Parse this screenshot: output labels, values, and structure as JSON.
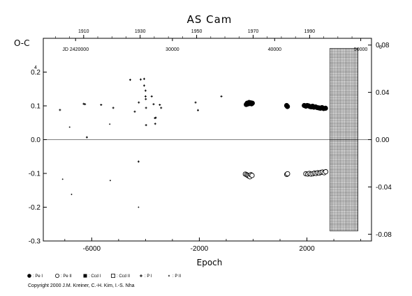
{
  "chart_data": {
    "type": "scatter",
    "title": "AS Cam",
    "xlabel": "Epoch",
    "ylabel": "O-C",
    "xlim": [
      -7800,
      4400
    ],
    "ylim": [
      -0.3,
      0.3
    ],
    "x_ticks": [
      -6000,
      -2000,
      2000
    ],
    "x_ticks_label_text": [
      "-6000",
      "-2000",
      "2000"
    ],
    "y_ticks_left": [
      -0.3,
      -0.2,
      -0.1,
      0.0,
      0.1,
      0.2
    ],
    "y_ticks_left_text": [
      "-0.3",
      "-0.2",
      "-0.1",
      "0.0",
      "0.1",
      "0.2"
    ],
    "y_right_ticks": [
      -0.08,
      -0.04,
      0.0,
      0.04,
      0.08
    ],
    "y_right_ticks_text": [
      "-0.08",
      "-0.04",
      "0.00",
      "0.04",
      "0.08"
    ],
    "top_year_axis": {
      "labels": [
        "1910",
        "1930",
        "1950",
        "1970",
        "1990"
      ],
      "epochs": [
        -6300,
        -4200,
        -2100,
        0,
        2100
      ]
    },
    "jd_axis": {
      "labels": [
        "JD 2420000",
        "30000",
        "40000",
        "50000"
      ],
      "epochs": [
        -6600,
        -3000,
        800,
        4000
      ]
    },
    "hatched_region": {
      "from_epoch": 2850,
      "to_epoch": 3900,
      "y_top": 0.27,
      "y_bottom": -0.27
    },
    "grid": false,
    "legend": [
      {
        "symbol": "filled-circle",
        "label": ": Pe I"
      },
      {
        "symbol": "open-circle",
        "label": ": Pe II"
      },
      {
        "symbol": "filled-square",
        "label": ": Ccd I"
      },
      {
        "symbol": "open-square",
        "label": ": Ccd II"
      },
      {
        "symbol": "plus",
        "label": ": P I"
      },
      {
        "symbol": "small-plus",
        "label": ": P II"
      }
    ],
    "series": [
      {
        "name": ": Pe I",
        "marker": "filled-circle",
        "points": [
          [
            -255,
            0.104
          ],
          [
            -220,
            0.108
          ],
          [
            -180,
            0.106
          ],
          [
            -150,
            0.11
          ],
          [
            -120,
            0.107
          ],
          [
            -90,
            0.109
          ],
          [
            -60,
            0.106
          ],
          [
            -30,
            0.108
          ],
          [
            1245,
            0.101
          ],
          [
            1275,
            0.098
          ],
          [
            1900,
            0.101
          ],
          [
            1960,
            0.099
          ],
          [
            2010,
            0.101
          ],
          [
            2060,
            0.1
          ],
          [
            2110,
            0.098
          ],
          [
            2160,
            0.097
          ],
          [
            2210,
            0.099
          ],
          [
            2260,
            0.096
          ],
          [
            2320,
            0.097
          ],
          [
            2380,
            0.095
          ],
          [
            2440,
            0.094
          ],
          [
            2500,
            0.093
          ],
          [
            2560,
            0.095
          ],
          [
            2620,
            0.092
          ],
          [
            2690,
            0.093
          ]
        ]
      },
      {
        "name": ": Pe II",
        "marker": "open-circle",
        "points": [
          [
            -290,
            -0.102
          ],
          [
            -240,
            -0.104
          ],
          [
            -200,
            -0.106
          ],
          [
            -160,
            -0.108
          ],
          [
            -120,
            -0.11
          ],
          [
            -80,
            -0.104
          ],
          [
            -40,
            -0.106
          ],
          [
            1250,
            -0.103
          ],
          [
            1280,
            -0.101
          ],
          [
            1960,
            -0.101
          ],
          [
            2030,
            -0.102
          ],
          [
            2090,
            -0.1
          ],
          [
            2150,
            -0.102
          ],
          [
            2220,
            -0.101
          ],
          [
            2280,
            -0.099
          ],
          [
            2340,
            -0.1
          ],
          [
            2400,
            -0.098
          ],
          [
            2460,
            -0.099
          ],
          [
            2520,
            -0.097
          ],
          [
            2580,
            -0.096
          ],
          [
            2640,
            -0.098
          ],
          [
            2700,
            -0.095
          ]
        ]
      },
      {
        "name": ": P I",
        "marker": "plus",
        "points": [
          [
            -7180,
            0.088
          ],
          [
            -6300,
            0.106
          ],
          [
            -6250,
            0.105
          ],
          [
            -5650,
            0.103
          ],
          [
            -5200,
            0.094
          ],
          [
            -4570,
            0.177
          ],
          [
            -4400,
            0.083
          ],
          [
            -4250,
            0.11
          ],
          [
            -4180,
            0.178
          ],
          [
            -4050,
            0.18
          ],
          [
            -4050,
            0.16
          ],
          [
            -4000,
            0.145
          ],
          [
            -4000,
            0.128
          ],
          [
            -3990,
            0.12
          ],
          [
            -3980,
            0.094
          ],
          [
            -3980,
            0.043
          ],
          [
            -3770,
            0.128
          ],
          [
            -3700,
            0.105
          ],
          [
            -3650,
            0.064
          ],
          [
            -3640,
            0.047
          ],
          [
            -3620,
            0.065
          ],
          [
            -3470,
            0.103
          ],
          [
            -3420,
            0.094
          ],
          [
            -2140,
            0.11
          ],
          [
            -2050,
            0.087
          ],
          [
            -1180,
            0.128
          ],
          [
            -6180,
            0.007
          ],
          [
            -4260,
            -0.065
          ]
        ]
      },
      {
        "name": ": P II",
        "marker": "small-plus",
        "points": [
          [
            -6820,
            0.037
          ],
          [
            -5330,
            0.046
          ],
          [
            -7080,
            -0.117
          ],
          [
            -6750,
            -0.162
          ],
          [
            -5310,
            -0.121
          ],
          [
            -4260,
            -0.2
          ]
        ]
      }
    ]
  },
  "copyright": "Copyright 2000 J.M. Kreiner, C.-H. Kim, I.-S. Nha",
  "corner_mark": "0",
  "ylabel_corner_mark": "4",
  "colors": {
    "ink": "#000000",
    "background": "#ffffff"
  }
}
